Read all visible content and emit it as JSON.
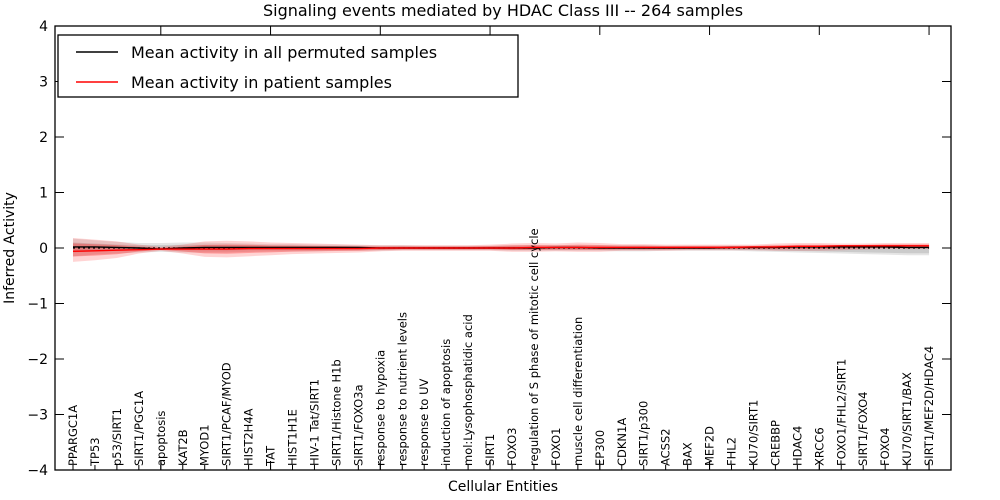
{
  "chart_data": {
    "type": "line",
    "title": "Signaling events mediated by HDAC Class III -- 264 samples",
    "xlabel": "Cellular Entities",
    "ylabel": "Inferred Activity",
    "ylim": [
      -4,
      4
    ],
    "grid": false,
    "legend_position": "upper left",
    "legend": [
      "Mean activity in all permuted samples",
      "Mean activity in patient samples"
    ],
    "yticks": [
      {
        "value": 4,
        "label": "4"
      },
      {
        "value": 3,
        "label": "3"
      },
      {
        "value": 2,
        "label": "2"
      },
      {
        "value": 1,
        "label": "1"
      },
      {
        "value": 0,
        "label": "0"
      },
      {
        "value": -1,
        "label": "−1"
      },
      {
        "value": -2,
        "label": "−2"
      },
      {
        "value": -3,
        "label": "−3"
      },
      {
        "value": -4,
        "label": "−4"
      }
    ],
    "x_major_tick_values": [
      5,
      10,
      15,
      20,
      25,
      30,
      35,
      40
    ],
    "categories": [
      "PPARGC1A",
      "TP53",
      "p53/SIRT1",
      "SIRT1/PGC1A",
      "apoptosis",
      "KAT2B",
      "MYOD1",
      "SIRT1/PCAF/MYOD",
      "HIST2H4A",
      "TAT",
      "HIST1H1E",
      "HIV-1 Tat/SIRT1",
      "SIRT1/Histone H1b",
      "SIRT1/FOXO3a",
      "response to hypoxia",
      "response to nutrient levels",
      "response to UV",
      "induction of apoptosis",
      "mol:Lysophosphatidic acid",
      "SIRT1",
      "FOXO3",
      "regulation of S phase of mitotic cell cycle",
      "FOXO1",
      "muscle cell differentiation",
      "EP300",
      "CDKN1A",
      "SIRT1/p300",
      "ACSS2",
      "BAX",
      "MEF2D",
      "FHL2",
      "KU70/SIRT1",
      "CREBBP",
      "HDAC4",
      "XRCC6",
      "FOXO1/FHL2/SIRT1",
      "SIRT1/FOXO4",
      "FOXO4",
      "KU70/SIRT1/BAX",
      "SIRT1/MEF2D/HDAC4"
    ],
    "zero_line": {
      "show": true,
      "style": "dotted",
      "color": "#000000"
    },
    "series": [
      {
        "name": "Mean activity in all permuted samples",
        "color": "#000000",
        "values": [
          0.02,
          0.02,
          0.01,
          0.0,
          -0.02,
          0.0,
          0.01,
          0.01,
          0.01,
          0.01,
          0.01,
          0.01,
          0.01,
          0.01,
          0.0,
          0.0,
          0.0,
          0.0,
          0.0,
          0.0,
          0.0,
          0.0,
          0.01,
          0.01,
          0.0,
          0.0,
          0.0,
          0.0,
          0.0,
          0.0,
          0.01,
          0.01,
          0.01,
          0.02,
          0.02,
          0.02,
          0.02,
          0.02,
          0.01,
          0.01
        ]
      },
      {
        "name": "Mean activity in patient samples",
        "color": "#ff0000",
        "values": [
          -0.06,
          -0.05,
          -0.04,
          -0.03,
          -0.02,
          -0.02,
          -0.02,
          -0.02,
          -0.01,
          -0.01,
          -0.01,
          -0.01,
          -0.01,
          -0.01,
          0.0,
          0.0,
          0.0,
          0.0,
          0.0,
          0.0,
          0.0,
          0.01,
          0.01,
          0.01,
          0.01,
          0.01,
          0.01,
          0.01,
          0.01,
          0.01,
          0.01,
          0.02,
          0.02,
          0.03,
          0.03,
          0.04,
          0.04,
          0.04,
          0.04,
          0.04
        ]
      }
    ],
    "bands": [
      {
        "name": "permuted-samples-spread",
        "color": "#000000",
        "opacity_outer": 0.1,
        "opacity_inner": 0.11,
        "upper": [
          0.17,
          0.14,
          0.11,
          0.09,
          0.09,
          0.1,
          0.1,
          0.09,
          0.08,
          0.07,
          0.07,
          0.06,
          0.06,
          0.05,
          0.05,
          0.05,
          0.04,
          0.04,
          0.04,
          0.04,
          0.05,
          0.05,
          0.05,
          0.05,
          0.05,
          0.05,
          0.05,
          0.04,
          0.04,
          0.04,
          0.04,
          0.04,
          0.04,
          0.04,
          0.04,
          0.03,
          0.03,
          0.03,
          0.03,
          0.03
        ],
        "lower": [
          -0.15,
          -0.12,
          -0.1,
          -0.08,
          -0.07,
          -0.08,
          -0.08,
          -0.08,
          -0.07,
          -0.06,
          -0.06,
          -0.06,
          -0.05,
          -0.05,
          -0.05,
          -0.04,
          -0.04,
          -0.04,
          -0.04,
          -0.04,
          -0.05,
          -0.05,
          -0.05,
          -0.05,
          -0.05,
          -0.06,
          -0.06,
          -0.05,
          -0.05,
          -0.05,
          -0.05,
          -0.06,
          -0.07,
          -0.08,
          -0.09,
          -0.1,
          -0.11,
          -0.12,
          -0.13,
          -0.13
        ]
      },
      {
        "name": "patient-samples-spread",
        "color": "#ff0000",
        "opacity_outer": 0.17,
        "opacity_inner": 0.27,
        "upper": [
          0.18,
          0.15,
          0.12,
          0.06,
          0.02,
          0.06,
          0.12,
          0.13,
          0.12,
          0.1,
          0.09,
          0.08,
          0.07,
          0.06,
          0.05,
          0.05,
          0.05,
          0.05,
          0.05,
          0.06,
          0.08,
          0.09,
          0.08,
          0.1,
          0.09,
          0.07,
          0.07,
          0.06,
          0.06,
          0.06,
          0.06,
          0.06,
          0.08,
          0.09,
          0.09,
          0.08,
          0.08,
          0.09,
          0.09,
          0.09
        ],
        "lower": [
          -0.25,
          -0.22,
          -0.18,
          -0.1,
          -0.05,
          -0.1,
          -0.16,
          -0.17,
          -0.15,
          -0.13,
          -0.11,
          -0.1,
          -0.09,
          -0.08,
          -0.06,
          -0.05,
          -0.05,
          -0.05,
          -0.05,
          -0.05,
          -0.07,
          -0.07,
          -0.06,
          -0.07,
          -0.07,
          -0.05,
          -0.05,
          -0.05,
          -0.04,
          -0.04,
          -0.04,
          -0.04,
          -0.05,
          -0.05,
          -0.05,
          -0.04,
          -0.03,
          -0.02,
          -0.02,
          -0.02
        ]
      }
    ]
  }
}
